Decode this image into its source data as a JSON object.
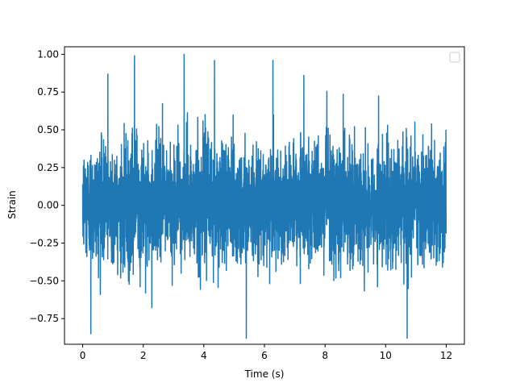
{
  "chart_data": {
    "type": "line",
    "title": "",
    "xlabel": "Time (s)",
    "ylabel": "Strain",
    "xlim": [
      -0.6,
      12.6
    ],
    "ylim": [
      -0.92,
      1.05
    ],
    "x_ticks": [
      0,
      2,
      4,
      6,
      8,
      10,
      12
    ],
    "x_tick_labels": [
      "0",
      "2",
      "4",
      "6",
      "8",
      "10",
      "12"
    ],
    "y_ticks": [
      -0.75,
      -0.5,
      -0.25,
      0.0,
      0.25,
      0.5,
      0.75,
      1.0
    ],
    "y_tick_labels": [
      "−0.75",
      "−0.50",
      "−0.25",
      "0.00",
      "0.25",
      "0.50",
      "0.75",
      "1.00"
    ],
    "grid": false,
    "legend": {
      "placement": "upper right",
      "entries": []
    },
    "series": [
      {
        "color": "#1f77b4",
        "style": "dense noisy signal",
        "x_range": [
          0,
          12
        ],
        "envelope": {
          "typical_max": 0.5,
          "typical_min": -0.5,
          "peak_max": 1.0,
          "peak_min": -0.87
        },
        "notable_points": [
          {
            "x": 0.0,
            "y": 0.14
          },
          {
            "x": 0.27,
            "y": -0.85
          },
          {
            "x": 0.83,
            "y": 0.87
          },
          {
            "x": 1.71,
            "y": 0.99
          },
          {
            "x": 3.35,
            "y": 1.0
          },
          {
            "x": 4.35,
            "y": 0.96
          },
          {
            "x": 5.4,
            "y": -0.88
          },
          {
            "x": 6.28,
            "y": 0.96
          },
          {
            "x": 7.3,
            "y": 0.86
          },
          {
            "x": 10.71,
            "y": -0.88
          },
          {
            "x": 12.0,
            "y": -0.18
          }
        ]
      }
    ]
  }
}
